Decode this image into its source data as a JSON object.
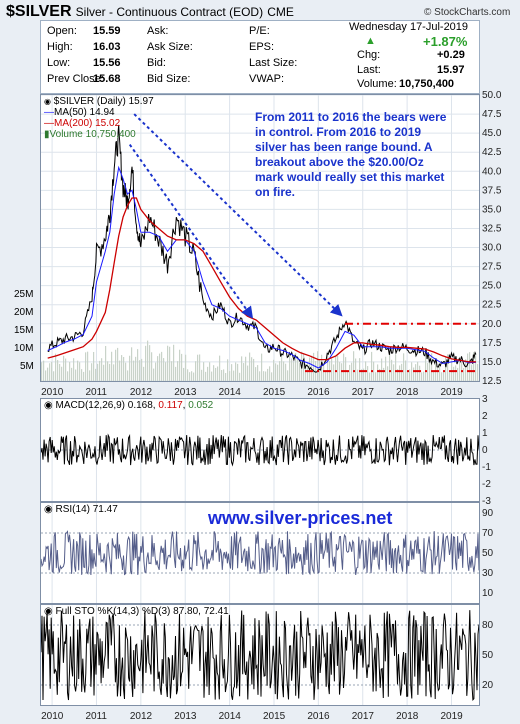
{
  "header": {
    "symbol": "$SILVER",
    "description": "Silver - Continuous Contract (EOD)",
    "exchange": "CME",
    "brand": "© StockCharts.com",
    "date": "Wednesday  17-Jul-2019",
    "change_pct": "+1.87%"
  },
  "quote": {
    "col1": [
      [
        "Open:",
        "15.59"
      ],
      [
        "High:",
        "16.03"
      ],
      [
        "Low:",
        "15.56"
      ],
      [
        "Prev Close:",
        "15.68"
      ]
    ],
    "col2": [
      [
        "Ask:",
        ""
      ],
      [
        "Ask Size:",
        ""
      ],
      [
        "Bid:",
        ""
      ],
      [
        "Bid Size:",
        ""
      ]
    ],
    "col3": [
      [
        "P/E:",
        ""
      ],
      [
        "EPS:",
        ""
      ],
      [
        "Last Size:",
        ""
      ],
      [
        "VWAP:",
        ""
      ]
    ],
    "col4": [
      [
        "Chg:",
        "+0.29"
      ],
      [
        "Last:",
        "15.97"
      ],
      [
        "Volume:",
        "10,750,400"
      ]
    ]
  },
  "legend": {
    "price": "$SILVER (Daily) 15.97",
    "ma50": "MA(50) 14.94",
    "ma200": "MA(200) 15.02",
    "volume": "Volume 10,750,400"
  },
  "annotation": "From 2011 to 2016 the bears were in control. From 2016 to 2019 silver has been range bound. A breakout above the $20.00/Oz mark would really set this market on fire.",
  "website": "www.silver-prices.net",
  "macd": {
    "label": "MACD(12,26,9)",
    "v1": "0.168",
    "v2": "0.117",
    "v3": "0.052"
  },
  "rsi": {
    "label": "RSI(14) 71.47"
  },
  "sto": {
    "label": "Full STO %K(14,3) %D(3) 87.80, 72.41"
  },
  "colors": {
    "price": "#000000",
    "ma50": "#1a1aff",
    "ma200": "#cc0000",
    "volume": "#2f7a2f",
    "annot": "#1a33cc",
    "channel": "#e00000"
  },
  "chart_data": [
    {
      "type": "line",
      "title": "$SILVER (Daily)",
      "x": [
        "2009.9",
        "2010.1",
        "2010.3",
        "2010.5",
        "2010.7",
        "2010.9",
        "2011.0",
        "2011.2",
        "2011.3",
        "2011.4",
        "2011.5",
        "2011.6",
        "2011.7",
        "2011.8",
        "2011.9",
        "2012.0",
        "2012.2",
        "2012.4",
        "2012.6",
        "2012.8",
        "2013.0",
        "2013.2",
        "2013.4",
        "2013.6",
        "2013.8",
        "2014.0",
        "2014.2",
        "2014.4",
        "2014.6",
        "2014.8",
        "2015.0",
        "2015.2",
        "2015.4",
        "2015.6",
        "2015.8",
        "2016.0",
        "2016.2",
        "2016.4",
        "2016.6",
        "2016.8",
        "2017.0",
        "2017.2",
        "2017.4",
        "2017.6",
        "2017.8",
        "2018.0",
        "2018.2",
        "2018.4",
        "2018.6",
        "2018.8",
        "2019.0",
        "2019.2",
        "2019.4",
        "2019.55"
      ],
      "series": [
        {
          "name": "$SILVER (Daily) 15.97",
          "values": [
            16.8,
            17.5,
            18.0,
            18.3,
            19.0,
            23.5,
            29.0,
            31.5,
            34.5,
            41.0,
            44.5,
            38.0,
            36.0,
            40.5,
            33.5,
            30.0,
            34.0,
            31.0,
            28.0,
            34.0,
            31.5,
            29.0,
            23.0,
            21.0,
            22.5,
            20.0,
            21.0,
            19.8,
            19.5,
            16.5,
            17.0,
            16.2,
            15.8,
            14.8,
            14.5,
            14.0,
            16.0,
            18.0,
            20.5,
            17.5,
            16.5,
            17.5,
            17.0,
            16.5,
            17.0,
            16.8,
            16.5,
            16.3,
            15.0,
            14.5,
            15.5,
            15.3,
            14.6,
            15.97
          ]
        },
        {
          "name": "MA(50) 14.94",
          "values": [
            16.5,
            17.0,
            17.6,
            18.0,
            18.6,
            21.0,
            25.5,
            29.5,
            32.0,
            37.0,
            40.5,
            39.0,
            37.0,
            37.5,
            35.0,
            32.0,
            32.0,
            31.5,
            29.5,
            31.0,
            31.0,
            29.5,
            25.5,
            22.5,
            22.0,
            21.0,
            20.5,
            20.0,
            19.5,
            17.5,
            16.8,
            16.5,
            16.0,
            15.2,
            14.8,
            14.2,
            15.0,
            16.8,
            19.0,
            18.5,
            17.0,
            17.0,
            17.0,
            16.8,
            16.8,
            16.8,
            16.6,
            16.4,
            15.5,
            14.8,
            15.0,
            15.2,
            14.9,
            14.94
          ]
        },
        {
          "name": "MA(200) 15.02",
          "values": [
            15.5,
            15.8,
            16.2,
            16.6,
            17.0,
            18.0,
            19.0,
            21.5,
            24.5,
            28.0,
            31.5,
            34.0,
            35.5,
            36.5,
            36.5,
            35.0,
            33.5,
            32.5,
            31.5,
            31.0,
            31.0,
            30.5,
            29.5,
            27.5,
            25.5,
            23.5,
            22.0,
            21.0,
            20.5,
            19.5,
            18.5,
            17.5,
            16.8,
            16.2,
            15.8,
            15.3,
            15.3,
            15.8,
            16.8,
            17.5,
            17.5,
            17.3,
            17.2,
            17.0,
            16.9,
            16.9,
            16.8,
            16.7,
            16.3,
            15.8,
            15.4,
            15.2,
            15.0,
            15.02
          ]
        }
      ],
      "ylim": [
        12.5,
        50.0
      ],
      "yticks": [
        "12.5",
        "15.0",
        "17.5",
        "20.0",
        "22.5",
        "25.0",
        "27.5",
        "30.0",
        "32.5",
        "35.0",
        "37.5",
        "40.0",
        "42.5",
        "45.0",
        "47.5",
        "50.0"
      ],
      "xticks": [
        "2010",
        "2011",
        "2012",
        "2013",
        "2014",
        "2015",
        "2016",
        "2017",
        "2018",
        "2019"
      ],
      "volume_axis_ticks": [
        "5M",
        "10M",
        "15M",
        "20M",
        "25M"
      ],
      "annotations": {
        "resistance": 20.0,
        "support": 13.8
      }
    },
    {
      "type": "line",
      "title": "MACD(12,26,9)",
      "ylim": [
        -3,
        3
      ],
      "yticks": [
        "-3",
        "-2",
        "-1",
        "0",
        "1",
        "2",
        "3"
      ]
    },
    {
      "type": "line",
      "title": "RSI(14)",
      "ylim": [
        0,
        100
      ],
      "yticks": [
        "10",
        "30",
        "50",
        "70",
        "90"
      ]
    },
    {
      "type": "line",
      "title": "Full STO %K(14,3) %D(3)",
      "ylim": [
        0,
        100
      ],
      "yticks": [
        "20",
        "50",
        "80"
      ]
    }
  ]
}
